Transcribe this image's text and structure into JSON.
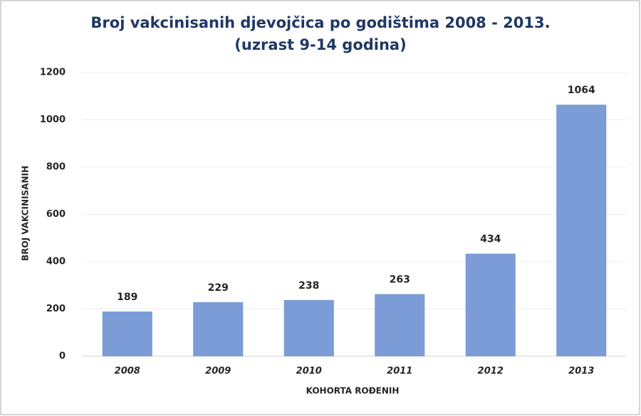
{
  "chart_data": {
    "type": "bar",
    "title": "Broj vakcinisanih djevojčica po godištima 2008 - 2013.",
    "subtitle": "(uzrast 9-14 godina)",
    "x_label": "KOHORTA ROĐENIH",
    "y_label": "BROJ VAKCINISANIH",
    "categories": [
      "2008",
      "2009",
      "2010",
      "2011",
      "2012",
      "2013"
    ],
    "values": [
      189,
      229,
      238,
      263,
      434,
      1064
    ],
    "color": "#7b9cd6",
    "ylim": [
      0,
      1200
    ],
    "yticks": [
      0,
      200,
      400,
      600,
      800,
      1000,
      1200
    ],
    "grid": true
  }
}
